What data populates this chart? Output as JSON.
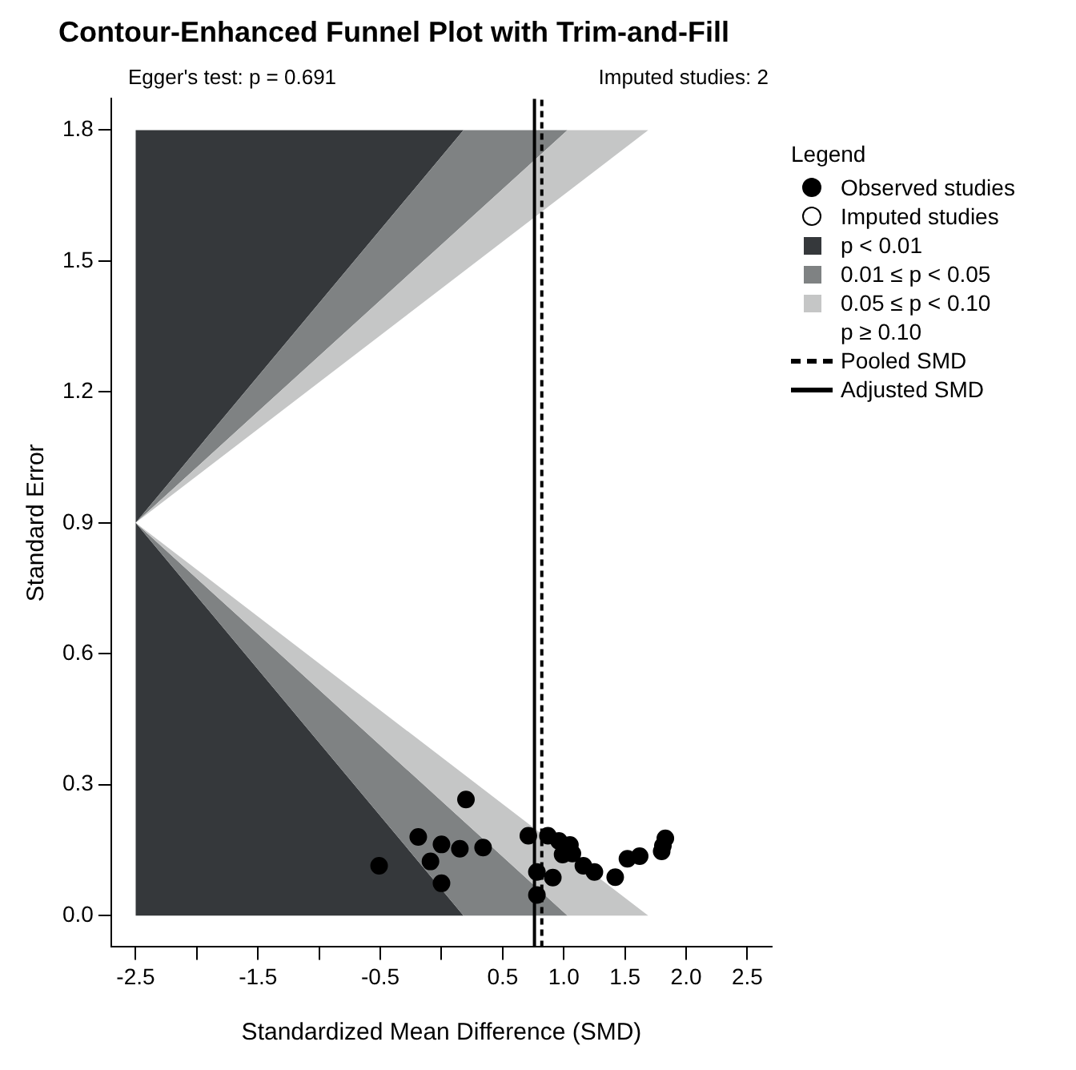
{
  "chart_data": {
    "type": "scatter",
    "title": "Contour-Enhanced Funnel Plot with Trim-and-Fill",
    "xlabel": "Standardized Mean Difference (SMD)",
    "ylabel": "Standard Error",
    "legend_title": "Legend",
    "legend": "right",
    "grid": false,
    "annotations": [
      "Egger's test: p = 0.691",
      "Imputed studies: 2"
    ],
    "xlim": [
      -2.7,
      2.7
    ],
    "ylim": [
      -0.072,
      1.872
    ],
    "xticks": [
      -2.5,
      {
        "value": -2,
        "label": null
      },
      -1.5,
      {
        "value": -1,
        "label": null
      },
      -0.5,
      {
        "value": 0,
        "label": null
      },
      0.5,
      {
        "value": 1,
        "label": "1.0"
      },
      1.5,
      {
        "value": 2,
        "label": "2.0"
      },
      2.5
    ],
    "yticks": [
      {
        "value": 0,
        "label": "0.0"
      },
      0.3,
      0.6,
      0.9,
      1.2,
      1.5,
      1.8
    ],
    "series": [
      {
        "name": "Observed studies",
        "marker": "circle",
        "color": "#000000",
        "x": [
          -0.51,
          -0.19,
          -0.09,
          0.0,
          0.0,
          0.15,
          0.2,
          0.34,
          0.71,
          0.78,
          0.78,
          0.87,
          0.91,
          0.96,
          0.99,
          1.05,
          1.07,
          1.16,
          1.25,
          1.42,
          1.52,
          1.62,
          1.8,
          1.81,
          1.83
        ],
        "values": [
          0.114,
          0.18,
          0.124,
          0.163,
          0.074,
          0.153,
          0.266,
          0.156,
          0.183,
          0.1,
          0.047,
          0.183,
          0.087,
          0.171,
          0.14,
          0.162,
          0.142,
          0.114,
          0.1,
          0.088,
          0.13,
          0.136,
          0.147,
          0.16,
          0.177
        ]
      },
      {
        "name": "Imputed studies",
        "marker": "circle",
        "color": "#ffffff"
      },
      {
        "name": "p < 0.01",
        "type": "area",
        "color": "#35383b",
        "x": [
          -2.5,
          0.18,
          -2.5,
          0.18,
          -2.5,
          -2.5
        ],
        "values": [
          0,
          0,
          0.9,
          1.8,
          1.8,
          0
        ]
      },
      {
        "name": "0.01 ≤ p < 0.05",
        "type": "area",
        "color": "#7f8283",
        "x": [
          0.18,
          1.03,
          -2.5,
          1.03,
          0.18,
          -2.5,
          0.18
        ],
        "values": [
          0,
          0,
          0.9,
          1.8,
          1.8,
          0.9,
          0
        ]
      },
      {
        "name": "0.05 ≤ p < 0.10",
        "type": "area",
        "color": "#c5c6c6",
        "x": [
          1.03,
          1.69,
          -2.5,
          1.69,
          1.03,
          -2.5,
          1.03
        ],
        "values": [
          0,
          0,
          0.9,
          1.8,
          1.8,
          0.9,
          0
        ]
      },
      {
        "name": "p ≥ 0.10",
        "type": "area"
      },
      {
        "name": "Pooled SMD",
        "type": "line",
        "line_style": "dashed",
        "color": "#000000",
        "x": [
          0.82,
          0.82
        ],
        "values": [
          -0.072,
          1.872
        ]
      },
      {
        "name": "Adjusted SMD",
        "type": "line",
        "line_style": "solid",
        "color": "#000000",
        "x": [
          0.76,
          0.76
        ],
        "values": [
          -0.072,
          1.872
        ]
      }
    ]
  }
}
